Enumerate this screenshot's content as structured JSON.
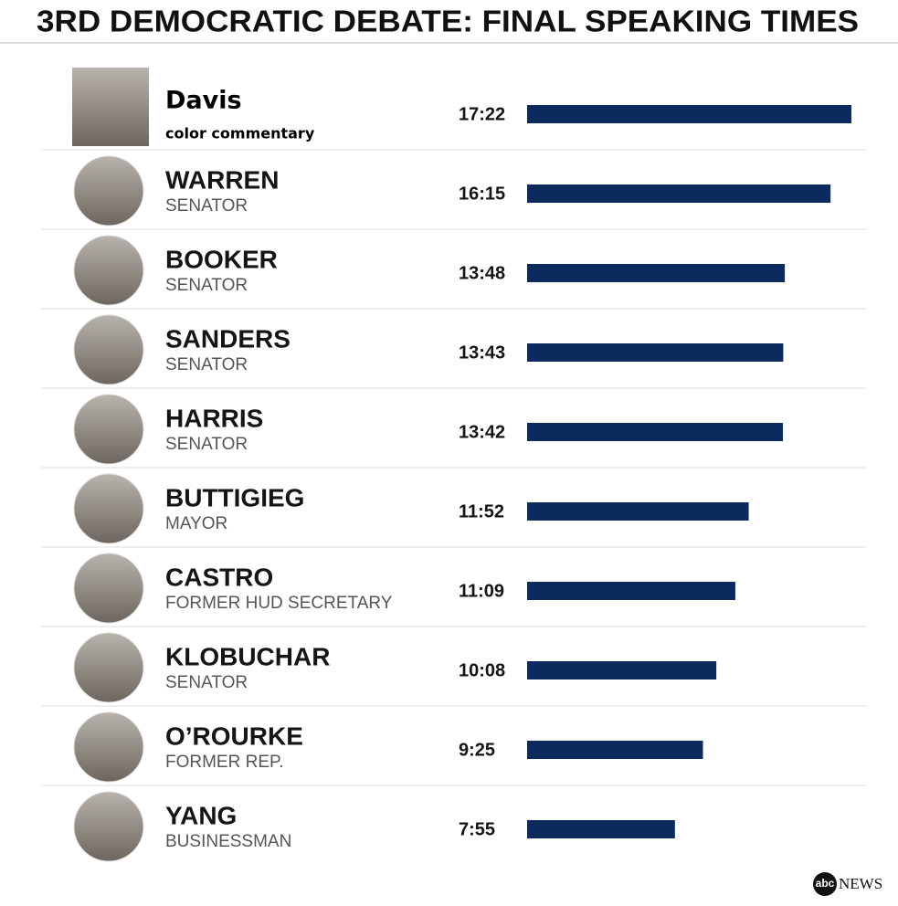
{
  "chart_data": {
    "type": "bar",
    "title": "3RD DEMOCRATIC DEBATE: FINAL SPEAKING TIMES",
    "categories": [
      "Davis",
      "WARREN",
      "BOOKER",
      "SANDERS",
      "HARRIS",
      "BUTTIGIEG",
      "CASTRO",
      "KLOBUCHAR",
      "O’ROURKE",
      "YANG"
    ],
    "subtitles": [
      "color commentary",
      "SENATOR",
      "SENATOR",
      "SENATOR",
      "SENATOR",
      "MAYOR",
      "FORMER HUD SECRETARY",
      "SENATOR",
      "FORMER REP.",
      "BUSINESSMAN"
    ],
    "values": [
      1042,
      975,
      828,
      823,
      822,
      712,
      669,
      608,
      565,
      475
    ],
    "value_labels": [
      "17:22",
      "16:15",
      "13:48",
      "13:43",
      "13:42",
      "11:52",
      "11:09",
      "10:08",
      "9:25",
      "7:55"
    ],
    "color": "#0c2a5e"
  },
  "logo": {
    "mark": "abc",
    "text": "NEWS"
  }
}
